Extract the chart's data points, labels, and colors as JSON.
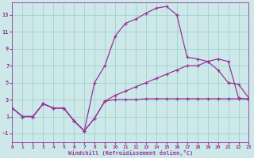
{
  "bg_color": "#cce8e8",
  "line_color": "#993399",
  "grid_color": "#99cccc",
  "xlim": [
    0,
    23
  ],
  "ylim": [
    -2,
    14.5
  ],
  "xticks": [
    0,
    1,
    2,
    3,
    4,
    5,
    6,
    7,
    8,
    9,
    10,
    11,
    12,
    13,
    14,
    15,
    16,
    17,
    18,
    19,
    20,
    21,
    22,
    23
  ],
  "yticks": [
    -1,
    1,
    3,
    5,
    7,
    9,
    11,
    13
  ],
  "xlabel": "Windchill (Refroidissement éolien,°C)",
  "line1_x": [
    0,
    1,
    2,
    3,
    4,
    5,
    6,
    7,
    8,
    9,
    10,
    11,
    12,
    13,
    14,
    15,
    16,
    17,
    18,
    19,
    20,
    21,
    22,
    23
  ],
  "line1_y": [
    2.0,
    1.0,
    1.0,
    2.5,
    2.0,
    2.0,
    0.5,
    -0.7,
    5.0,
    7.0,
    10.5,
    12.0,
    12.5,
    13.2,
    13.8,
    14.0,
    13.0,
    8.0,
    7.8,
    7.5,
    7.8,
    7.5,
    3.2,
    3.0
  ],
  "line2_x": [
    0,
    1,
    2,
    3,
    4,
    5,
    6,
    7,
    8,
    9,
    10,
    11,
    12,
    13,
    14,
    15,
    16,
    17,
    18,
    19,
    20,
    21,
    22,
    23
  ],
  "line2_y": [
    2.0,
    1.0,
    1.0,
    2.5,
    2.0,
    2.0,
    0.5,
    -0.7,
    0.8,
    2.8,
    3.5,
    4.0,
    4.5,
    5.0,
    5.5,
    6.0,
    6.5,
    7.0,
    7.0,
    7.5,
    6.5,
    5.0,
    4.8,
    3.2
  ],
  "line3_x": [
    0,
    1,
    2,
    3,
    4,
    5,
    6,
    7,
    8,
    9,
    10,
    11,
    12,
    13,
    14,
    15,
    16,
    17,
    18,
    19,
    20,
    21,
    22,
    23
  ],
  "line3_y": [
    2.0,
    1.0,
    1.0,
    2.5,
    2.0,
    2.0,
    0.5,
    -0.7,
    0.8,
    2.8,
    3.0,
    3.0,
    3.0,
    3.1,
    3.1,
    3.1,
    3.1,
    3.1,
    3.1,
    3.1,
    3.1,
    3.1,
    3.1,
    3.1
  ]
}
